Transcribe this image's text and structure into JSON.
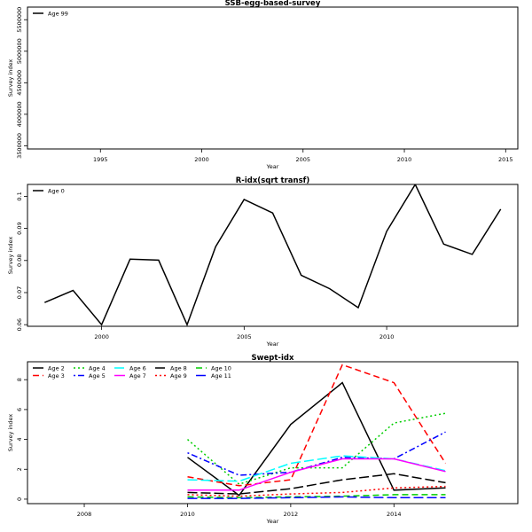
{
  "chart_data": [
    {
      "type": "line",
      "title": "SSB-egg-based-survey",
      "xlabel": "Year",
      "ylabel": "Survey index",
      "xlim": [
        1991.4,
        2015.6
      ],
      "ylim": [
        3450000,
        5700000
      ],
      "xticks": [
        1995,
        2000,
        2005,
        2010,
        2015
      ],
      "yticks": [
        3500000,
        4000000,
        4500000,
        5000000,
        5500000
      ],
      "legend_position": "top-left",
      "series": [
        {
          "name": "Age 99",
          "color": "#000000",
          "dash": "solid",
          "x": [],
          "y": []
        }
      ]
    },
    {
      "type": "line",
      "title": "R-idx(sqrt transf)",
      "xlabel": "Year",
      "ylabel": "Survey index",
      "xlim": [
        1997.4,
        2014.6
      ],
      "ylim": [
        0.0595,
        0.1037
      ],
      "xticks": [
        2000,
        2005,
        2010
      ],
      "yticks": [
        0.06,
        0.07,
        0.08,
        0.09,
        0.1
      ],
      "legend_position": "top-left",
      "series": [
        {
          "name": "Age 0",
          "color": "#000000",
          "dash": "solid",
          "x": [
            1998,
            1999,
            2000,
            2001,
            2002,
            2003,
            2004,
            2005,
            2006,
            2007,
            2008,
            2009,
            2010,
            2011,
            2012,
            2013,
            2014
          ],
          "y": [
            0.0669,
            0.0707,
            0.06,
            0.0804,
            0.0801,
            0.06,
            0.0843,
            0.099,
            0.0948,
            0.0754,
            0.0712,
            0.0653,
            0.0891,
            0.1037,
            0.0851,
            0.0819,
            0.096
          ]
        }
      ]
    },
    {
      "type": "line",
      "title": "Swept-idx",
      "xlabel": "Year",
      "ylabel": "Survey index",
      "xlim": [
        2006.9,
        2016.4
      ],
      "ylim": [
        -0.3,
        9.2
      ],
      "xticks": [
        2008,
        2010,
        2012,
        2014
      ],
      "yticks": [
        0,
        2,
        4,
        6,
        8
      ],
      "legend_position": "top-left",
      "series": [
        {
          "name": "Age 2",
          "color": "#000000",
          "dash": "solid",
          "x": [
            2010,
            2011,
            2012,
            2013,
            2014,
            2015
          ],
          "y": [
            2.8,
            0.25,
            5.0,
            7.8,
            0.6,
            0.75
          ]
        },
        {
          "name": "Age 3",
          "color": "#ff0000",
          "dash": "dashed",
          "x": [
            2010,
            2011,
            2012,
            2013,
            2014,
            2015
          ],
          "y": [
            1.5,
            0.9,
            1.3,
            9.0,
            7.8,
            2.4
          ]
        },
        {
          "name": "Age 4",
          "color": "#00cd00",
          "dash": "dotted",
          "x": [
            2010,
            2011,
            2012,
            2013,
            2014,
            2015
          ],
          "y": [
            4.0,
            1.0,
            2.1,
            2.1,
            5.1,
            5.75
          ]
        },
        {
          "name": "Age 5",
          "color": "#0000ff",
          "dash": "dotdash",
          "x": [
            2010,
            2011,
            2012,
            2013,
            2014,
            2015
          ],
          "y": [
            3.1,
            1.6,
            1.8,
            2.8,
            2.7,
            4.5
          ]
        },
        {
          "name": "Age 6",
          "color": "#00ffff",
          "dash": "longdash",
          "x": [
            2010,
            2011,
            2012,
            2013,
            2014,
            2015
          ],
          "y": [
            1.3,
            1.2,
            2.4,
            2.9,
            2.7,
            1.9
          ]
        },
        {
          "name": "Age 7",
          "color": "#ff00ff",
          "dash": "solid",
          "x": [
            2010,
            2011,
            2012,
            2013,
            2014,
            2015
          ],
          "y": [
            0.6,
            0.6,
            1.8,
            2.7,
            2.7,
            1.85
          ]
        },
        {
          "name": "Age 8",
          "color": "#000000",
          "dash": "longdash",
          "x": [
            2010,
            2011,
            2012,
            2013,
            2014,
            2015
          ],
          "y": [
            0.45,
            0.35,
            0.7,
            1.3,
            1.7,
            1.1
          ]
        },
        {
          "name": "Age 9",
          "color": "#ff0000",
          "dash": "dotted",
          "x": [
            2010,
            2011,
            2012,
            2013,
            2014,
            2015
          ],
          "y": [
            0.3,
            0.2,
            0.35,
            0.45,
            0.75,
            0.85
          ]
        },
        {
          "name": "Age 10",
          "color": "#00cd00",
          "dash": "dashed",
          "x": [
            2010,
            2011,
            2012,
            2013,
            2014,
            2015
          ],
          "y": [
            0.15,
            0.1,
            0.15,
            0.2,
            0.3,
            0.3
          ]
        },
        {
          "name": "Age 11",
          "color": "#0000ff",
          "dash": "longdash",
          "x": [
            2010,
            2011,
            2012,
            2013,
            2014,
            2015
          ],
          "y": [
            0.05,
            0.05,
            0.1,
            0.15,
            0.1,
            0.1
          ]
        }
      ]
    }
  ]
}
